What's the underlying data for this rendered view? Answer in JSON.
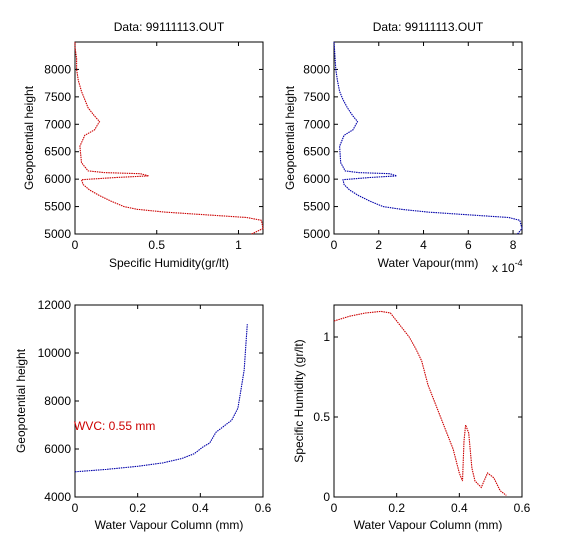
{
  "chart_data": [
    {
      "type": "line",
      "title": "Data: 99111113.OUT",
      "xlabel": "Specific Humidity(gr/lt)",
      "ylabel": "Geopotential height",
      "xlim": [
        0,
        1.15
      ],
      "ylim": [
        5000,
        8500
      ],
      "xticks": [
        0,
        0.5,
        1
      ],
      "xtick_labels": [
        "0",
        "0.5",
        "1"
      ],
      "yticks": [
        5000,
        5500,
        6000,
        6500,
        7000,
        7500,
        8000
      ],
      "ytick_labels": [
        "5000",
        "5500",
        "6000",
        "6500",
        "7000",
        "7500",
        "8000"
      ],
      "exponent_label": "",
      "series": [
        {
          "color": "#cc0000",
          "x": [
            1.08,
            1.15,
            1.14,
            1.05,
            0.8,
            0.55,
            0.38,
            0.3,
            0.22,
            0.15,
            0.09,
            0.05,
            0.04,
            0.25,
            0.45,
            0.4,
            0.18,
            0.08,
            0.04,
            0.03,
            0.06,
            0.12,
            0.15,
            0.12,
            0.08,
            0.06,
            0.04,
            0.02,
            0.01,
            0.01,
            0.0,
            0.0
          ],
          "y": [
            5000,
            5100,
            5250,
            5300,
            5350,
            5400,
            5450,
            5500,
            5600,
            5700,
            5800,
            5900,
            5990,
            6030,
            6060,
            6100,
            6120,
            6150,
            6300,
            6600,
            6800,
            6900,
            7050,
            7150,
            7300,
            7450,
            7600,
            7800,
            8000,
            8200,
            8400,
            8500
          ]
        }
      ]
    },
    {
      "type": "line",
      "title": "Data: 99111113.OUT",
      "xlabel": "Water Vapour(mm)",
      "ylabel": "Geopotential height",
      "xlim": [
        0,
        8.4
      ],
      "ylim": [
        5000,
        8500
      ],
      "xticks": [
        0,
        2,
        4,
        6,
        8
      ],
      "xtick_labels": [
        "0",
        "2",
        "4",
        "6",
        "8"
      ],
      "yticks": [
        5000,
        5500,
        6000,
        6500,
        7000,
        7500,
        8000
      ],
      "ytick_labels": [
        "5000",
        "5500",
        "6000",
        "6500",
        "7000",
        "7500",
        "8000"
      ],
      "exponent_label": "x 10",
      "exponent_power": "-4",
      "series": [
        {
          "color": "#0000aa",
          "x": [
            8.2,
            8.4,
            8.3,
            7.8,
            6.0,
            4.2,
            3.0,
            2.2,
            1.6,
            1.1,
            0.7,
            0.45,
            0.4,
            1.6,
            2.8,
            2.5,
            1.1,
            0.5,
            0.3,
            0.25,
            0.45,
            0.85,
            1.05,
            0.85,
            0.6,
            0.4,
            0.25,
            0.15,
            0.08,
            0.05,
            0.02,
            0.0
          ],
          "y": [
            5000,
            5100,
            5250,
            5300,
            5350,
            5400,
            5450,
            5500,
            5600,
            5700,
            5800,
            5900,
            5990,
            6030,
            6060,
            6100,
            6120,
            6150,
            6300,
            6600,
            6800,
            6900,
            7050,
            7150,
            7300,
            7450,
            7600,
            7800,
            8000,
            8200,
            8400,
            8500
          ]
        }
      ]
    },
    {
      "type": "line",
      "title": "",
      "xlabel": "Water Vapour Column (mm)",
      "ylabel": "Geopotential height",
      "xlim": [
        0,
        0.6
      ],
      "ylim": [
        4000,
        12000
      ],
      "xticks": [
        0,
        0.2,
        0.4,
        0.6
      ],
      "xtick_labels": [
        "0",
        "0.2",
        "0.4",
        "0.6"
      ],
      "yticks": [
        4000,
        6000,
        8000,
        10000,
        12000
      ],
      "ytick_labels": [
        "4000",
        "6000",
        "8000",
        "10000",
        "12000"
      ],
      "exponent_label": "",
      "annotation": "WVC: 0.55 mm",
      "annotation_color": "#cc0000",
      "series": [
        {
          "color": "#0000aa",
          "x": [
            0.0,
            0.1,
            0.2,
            0.28,
            0.34,
            0.38,
            0.4,
            0.41,
            0.43,
            0.45,
            0.47,
            0.5,
            0.52,
            0.53,
            0.54,
            0.545,
            0.55
          ],
          "y": [
            5050,
            5150,
            5280,
            5420,
            5600,
            5800,
            6000,
            6100,
            6250,
            6700,
            6900,
            7200,
            7700,
            8500,
            9300,
            10300,
            11200
          ]
        }
      ]
    },
    {
      "type": "line",
      "title": "",
      "xlabel": "Water Vapour Column (mm)",
      "ylabel": "Specific Humidity (gr/lt)",
      "xlim": [
        0,
        0.6
      ],
      "ylim": [
        0,
        1.2
      ],
      "xticks": [
        0,
        0.2,
        0.4,
        0.6
      ],
      "xtick_labels": [
        "0",
        "0.2",
        "0.4",
        "0.6"
      ],
      "yticks": [
        0,
        0.5,
        1
      ],
      "ytick_labels": [
        "0",
        "0.5",
        "1"
      ],
      "exponent_label": "",
      "series": [
        {
          "color": "#cc0000",
          "x": [
            0.0,
            0.05,
            0.1,
            0.15,
            0.18,
            0.2,
            0.24,
            0.26,
            0.28,
            0.3,
            0.33,
            0.36,
            0.38,
            0.4,
            0.41,
            0.415,
            0.42,
            0.43,
            0.44,
            0.45,
            0.47,
            0.49,
            0.51,
            0.53,
            0.55
          ],
          "y": [
            1.1,
            1.13,
            1.15,
            1.16,
            1.15,
            1.1,
            1.0,
            0.93,
            0.85,
            0.7,
            0.55,
            0.4,
            0.3,
            0.15,
            0.1,
            0.35,
            0.45,
            0.4,
            0.18,
            0.1,
            0.06,
            0.15,
            0.12,
            0.04,
            0.01
          ]
        }
      ]
    }
  ]
}
